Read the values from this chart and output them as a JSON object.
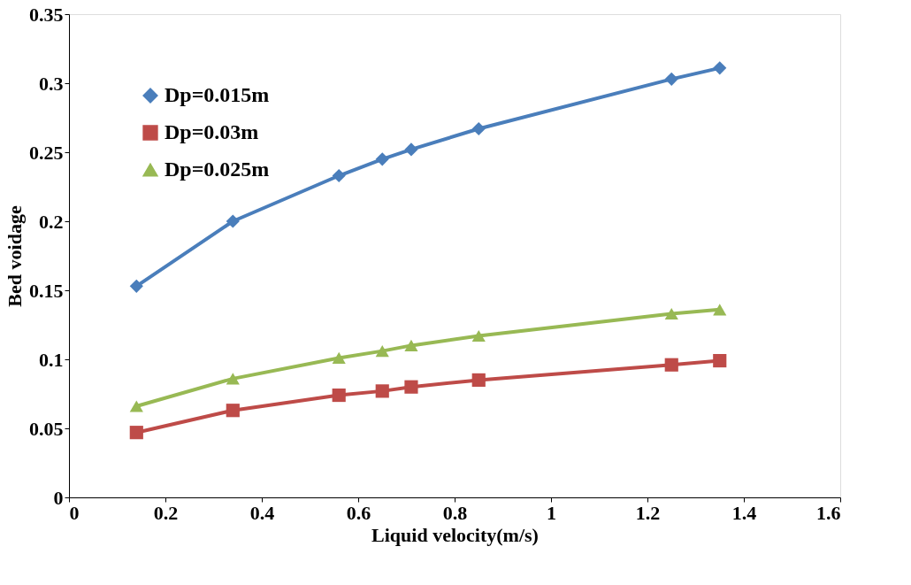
{
  "chart_data": {
    "type": "line",
    "xlabel": "Liquid velocity(m/s)",
    "ylabel": "Bed voidage",
    "x": [
      0.14,
      0.34,
      0.56,
      0.65,
      0.71,
      0.85,
      1.25,
      1.35
    ],
    "series": [
      {
        "name": "Dp=0.015m",
        "color": "#4a7ebb",
        "marker": "diamond",
        "values": [
          0.153,
          0.2,
          0.233,
          0.245,
          0.252,
          0.267,
          0.303,
          0.311
        ]
      },
      {
        "name": "Dp=0.03m",
        "color": "#be4b48",
        "marker": "square",
        "values": [
          0.047,
          0.063,
          0.074,
          0.077,
          0.08,
          0.085,
          0.096,
          0.099
        ]
      },
      {
        "name": "Dp=0.025m",
        "color": "#98b954",
        "marker": "triangle",
        "values": [
          0.066,
          0.086,
          0.101,
          0.106,
          0.11,
          0.117,
          0.133,
          0.136
        ]
      }
    ],
    "xlim": [
      0,
      1.6
    ],
    "xticks": [
      0,
      0.2,
      0.4,
      0.6,
      0.8,
      1,
      1.2,
      1.4,
      1.6
    ],
    "ylim": [
      0,
      0.35
    ],
    "yticks": [
      0,
      0.05,
      0.1,
      0.15,
      0.2,
      0.25,
      0.3,
      0.35
    ],
    "grid": false,
    "legend": "top left",
    "line_style": "solid"
  }
}
